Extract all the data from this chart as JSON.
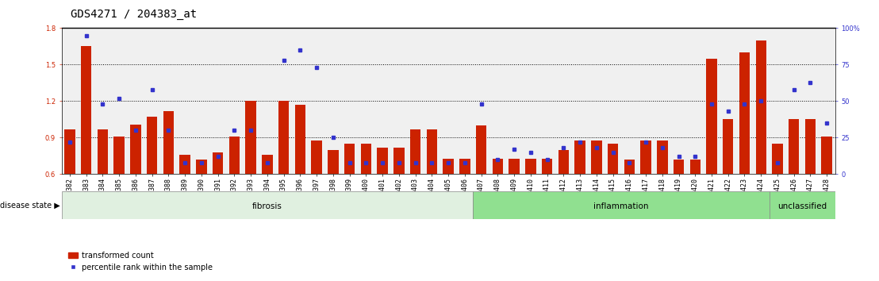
{
  "title": "GDS4271 / 204383_at",
  "samples": [
    "GSM380382",
    "GSM380383",
    "GSM380384",
    "GSM380385",
    "GSM380386",
    "GSM380387",
    "GSM380388",
    "GSM380389",
    "GSM380390",
    "GSM380391",
    "GSM380392",
    "GSM380393",
    "GSM380394",
    "GSM380395",
    "GSM380396",
    "GSM380397",
    "GSM380398",
    "GSM380399",
    "GSM380400",
    "GSM380401",
    "GSM380402",
    "GSM380403",
    "GSM380404",
    "GSM380405",
    "GSM380406",
    "GSM380407",
    "GSM380408",
    "GSM380409",
    "GSM380410",
    "GSM380411",
    "GSM380412",
    "GSM380413",
    "GSM380414",
    "GSM380415",
    "GSM380416",
    "GSM380417",
    "GSM380418",
    "GSM380419",
    "GSM380420",
    "GSM380421",
    "GSM380422",
    "GSM380423",
    "GSM380424",
    "GSM380425",
    "GSM380426",
    "GSM380427",
    "GSM380428"
  ],
  "bar_values": [
    0.97,
    1.65,
    0.97,
    0.91,
    1.01,
    1.07,
    1.12,
    0.76,
    0.72,
    0.78,
    0.91,
    1.2,
    0.76,
    1.2,
    1.17,
    0.88,
    0.8,
    0.85,
    0.85,
    0.82,
    0.82,
    0.97,
    0.97,
    0.73,
    0.73,
    1.0,
    0.73,
    0.73,
    0.73,
    0.73,
    0.8,
    0.88,
    0.88,
    0.85,
    0.72,
    0.88,
    0.88,
    0.72,
    0.72,
    1.55,
    1.05,
    1.6,
    1.7,
    0.85,
    1.05,
    1.05,
    0.91
  ],
  "percentile_pct": [
    22,
    95,
    48,
    52,
    30,
    58,
    30,
    8,
    8,
    12,
    30,
    30,
    8,
    78,
    85,
    73,
    25,
    8,
    8,
    8,
    8,
    8,
    8,
    8,
    8,
    48,
    10,
    17,
    15,
    10,
    18,
    22,
    18,
    15,
    8,
    22,
    18,
    12,
    12,
    48,
    43,
    48,
    50,
    8,
    58,
    63,
    35
  ],
  "disease_groups": [
    {
      "label": "fibrosis",
      "start": 0,
      "end": 24
    },
    {
      "label": "inflammation",
      "start": 25,
      "end": 42
    },
    {
      "label": "unclassified",
      "start": 43,
      "end": 46
    }
  ],
  "ylim_left": [
    0.6,
    1.8
  ],
  "ylim_right": [
    0,
    100
  ],
  "yticks_left": [
    0.6,
    0.9,
    1.2,
    1.5,
    1.8
  ],
  "yticks_right": [
    0,
    25,
    50,
    75,
    100
  ],
  "bar_color": "#cc2200",
  "dot_color": "#3333cc",
  "bg_color": "#f0f0f0",
  "title_fontsize": 10,
  "tick_fontsize": 6,
  "fibrosis_color": "#e0f0e0",
  "inflammation_color": "#90e090",
  "unclassified_color": "#90e090"
}
